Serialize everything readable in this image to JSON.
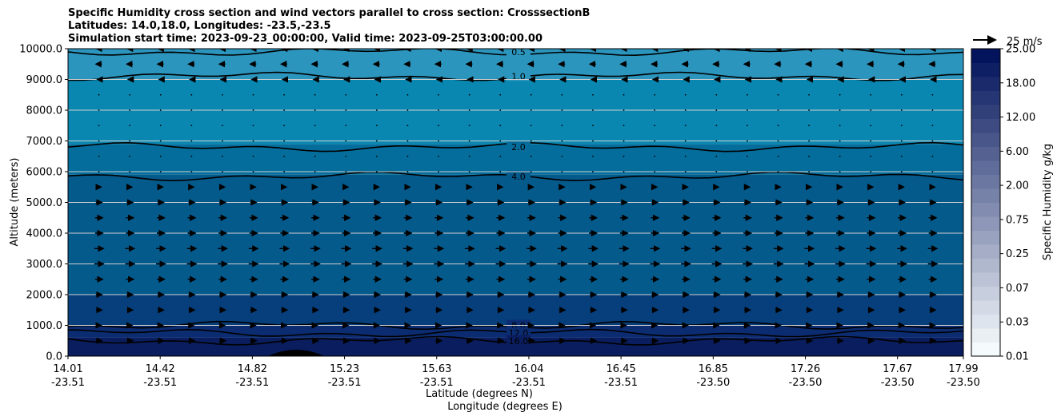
{
  "title": {
    "line1": "Specific Humidity cross section and wind vectors parallel to cross section: CrosssectionB",
    "line2": "Latitudes: 14.0,18.0, Longitudes: -23.5,-23.5",
    "line3": "Simulation start time: 2023-09-23_00:00:00, Valid time: 2023-09-25T03:00:00.00"
  },
  "quiver_key": {
    "label": "25 m/s"
  },
  "chart_data": {
    "type": "heatmap",
    "title": "Specific Humidity cross section and wind vectors parallel to cross section: CrosssectionB",
    "ylabel": "Altitude (meters)",
    "xlabel_lat": "Latitude (degrees N)",
    "xlabel_lon": "Longitude (degrees E)",
    "ylim": [
      0,
      10000
    ],
    "yticks": [
      "0.0",
      "1000.0",
      "2000.0",
      "3000.0",
      "4000.0",
      "5000.0",
      "6000.0",
      "7000.0",
      "8000.0",
      "9000.0",
      "10000.0"
    ],
    "xticks": [
      {
        "lat": "14.01",
        "lon": "-23.51"
      },
      {
        "lat": "14.42",
        "lon": "-23.51"
      },
      {
        "lat": "14.82",
        "lon": "-23.51"
      },
      {
        "lat": "15.23",
        "lon": "-23.51"
      },
      {
        "lat": "15.63",
        "lon": "-23.51"
      },
      {
        "lat": "16.04",
        "lon": "-23.51"
      },
      {
        "lat": "16.45",
        "lon": "-23.51"
      },
      {
        "lat": "16.85",
        "lon": "-23.50"
      },
      {
        "lat": "17.26",
        "lon": "-23.50"
      },
      {
        "lat": "17.67",
        "lon": "-23.50"
      },
      {
        "lat": "17.99",
        "lon": "-23.50"
      }
    ],
    "colorbar": {
      "label": "Specific Humidity g/kg",
      "ticks": [
        "0.01",
        "0.03",
        "0.07",
        "0.25",
        "0.75",
        "2.00",
        "6.00",
        "12.00",
        "18.00",
        "25.00"
      ]
    },
    "contours": [
      {
        "level": "0.5",
        "altitude_m": 9900
      },
      {
        "level": "1.0",
        "altitude_m": 9100
      },
      {
        "level": "2.0",
        "altitude_m": 6800
      },
      {
        "level": "4.0",
        "altitude_m": 5850
      },
      {
        "level": "8.0",
        "altitude_m": 1000
      },
      {
        "level": "12.0",
        "altitude_m": 750
      },
      {
        "level": "16.0",
        "altitude_m": 500
      }
    ],
    "humidity_layers": [
      {
        "from_m": 0,
        "to_m": 600,
        "value_gkg": 16
      },
      {
        "from_m": 600,
        "to_m": 1000,
        "value_gkg": 12
      },
      {
        "from_m": 1000,
        "to_m": 2000,
        "value_gkg": 8
      },
      {
        "from_m": 2000,
        "to_m": 5900,
        "value_gkg": 6
      },
      {
        "from_m": 5900,
        "to_m": 6900,
        "value_gkg": 3
      },
      {
        "from_m": 6900,
        "to_m": 9000,
        "value_gkg": 1.5
      },
      {
        "from_m": 9000,
        "to_m": 10000,
        "value_gkg": 0.8
      }
    ],
    "wind_profile": [
      {
        "altitude_m": 10000,
        "u_ms": -3
      },
      {
        "altitude_m": 9500,
        "u_ms": -4
      },
      {
        "altitude_m": 9000,
        "u_ms": -2
      },
      {
        "altitude_m": 8500,
        "u_ms": -1
      },
      {
        "altitude_m": 8000,
        "u_ms": -1
      },
      {
        "altitude_m": 7500,
        "u_ms": 0
      },
      {
        "altitude_m": 7000,
        "u_ms": 0
      },
      {
        "altitude_m": 6500,
        "u_ms": 1
      },
      {
        "altitude_m": 6000,
        "u_ms": 1
      },
      {
        "altitude_m": 5500,
        "u_ms": 3
      },
      {
        "altitude_m": 5000,
        "u_ms": 4
      },
      {
        "altitude_m": 4500,
        "u_ms": 5
      },
      {
        "altitude_m": 4000,
        "u_ms": 5
      },
      {
        "altitude_m": 3500,
        "u_ms": 6
      },
      {
        "altitude_m": 3000,
        "u_ms": 6
      },
      {
        "altitude_m": 2500,
        "u_ms": 5
      },
      {
        "altitude_m": 2000,
        "u_ms": 4
      },
      {
        "altitude_m": 1500,
        "u_ms": 4
      },
      {
        "altitude_m": 1000,
        "u_ms": 3
      },
      {
        "altitude_m": 500,
        "u_ms": 4
      }
    ]
  }
}
